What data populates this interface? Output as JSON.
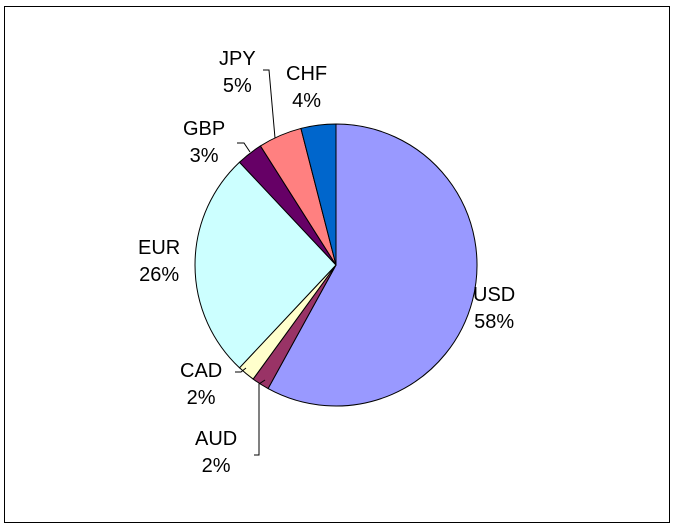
{
  "chart_data": {
    "type": "pie",
    "title": "",
    "start_angle_deg": 0,
    "direction": "clockwise",
    "border_color": "#000000",
    "slices": [
      {
        "label": "USD",
        "value": 58,
        "value_label": "58%",
        "color": "#9999FF"
      },
      {
        "label": "AUD",
        "value": 2,
        "value_label": "2%",
        "color": "#993366"
      },
      {
        "label": "CAD",
        "value": 2,
        "value_label": "2%",
        "color": "#FFFFCC"
      },
      {
        "label": "EUR",
        "value": 26,
        "value_label": "26%",
        "color": "#CCFFFF"
      },
      {
        "label": "GBP",
        "value": 3,
        "value_label": "3%",
        "color": "#660066"
      },
      {
        "label": "JPY",
        "value": 5,
        "value_label": "5%",
        "color": "#FF8080"
      },
      {
        "label": "CHF",
        "value": 4,
        "value_label": "4%",
        "color": "#0066CC"
      }
    ]
  }
}
